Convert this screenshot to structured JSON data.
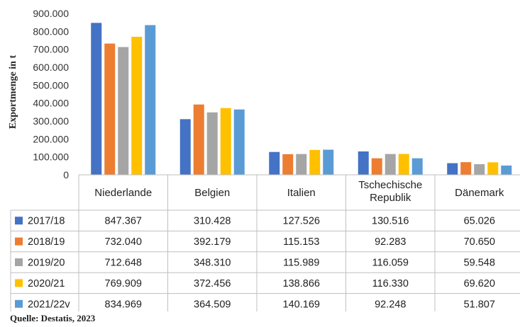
{
  "chart_data": {
    "type": "bar",
    "ylabel": "Exportmenge in t",
    "ylim": [
      0,
      900000
    ],
    "yticks": [
      "0",
      "100.000",
      "200.000",
      "300.000",
      "400.000",
      "500.000",
      "600.000",
      "700.000",
      "800.000",
      "900.000"
    ],
    "categories": [
      "Niederlande",
      "Belgien",
      "Italien",
      "Tschechische Republik",
      "Dänemark"
    ],
    "series": [
      {
        "name": "2017/18",
        "color": "#4472c4",
        "values": [
          847367,
          310428,
          127526,
          130516,
          65026
        ],
        "labels": [
          "847.367",
          "310.428",
          "127.526",
          "130.516",
          "65.026"
        ]
      },
      {
        "name": "2018/19",
        "color": "#ed7d31",
        "values": [
          732040,
          392179,
          115153,
          92283,
          70650
        ],
        "labels": [
          "732.040",
          "392.179",
          "115.153",
          "92.283",
          "70.650"
        ]
      },
      {
        "name": "2019/20",
        "color": "#a5a5a5",
        "values": [
          712648,
          348310,
          115989,
          116059,
          59548
        ],
        "labels": [
          "712.648",
          "348.310",
          "115.989",
          "116.059",
          "59.548"
        ]
      },
      {
        "name": "2020/21",
        "color": "#ffc000",
        "values": [
          769909,
          372456,
          138866,
          116330,
          69620
        ],
        "labels": [
          "769.909",
          "372.456",
          "138.866",
          "116.330",
          "69.620"
        ]
      },
      {
        "name": "2021/22v",
        "color": "#5b9bd5",
        "values": [
          834969,
          364509,
          140169,
          92248,
          51807
        ],
        "labels": [
          "834.969",
          "364.509",
          "140.169",
          "92.248",
          "51.807"
        ]
      }
    ],
    "legend": "data-table",
    "grid": false
  },
  "source": "Quelle: Destatis, 2023"
}
